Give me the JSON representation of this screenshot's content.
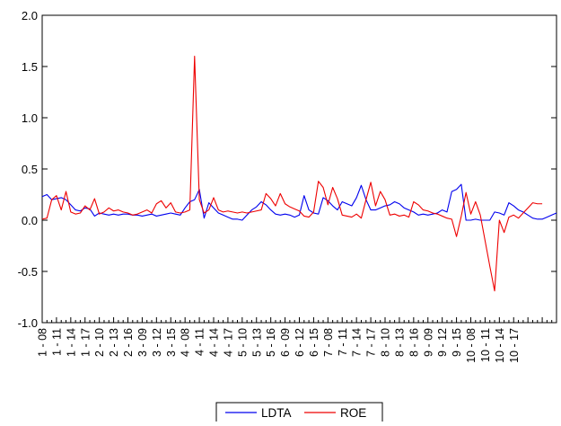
{
  "chart_data": {
    "type": "line",
    "ylim": [
      -1.0,
      2.0
    ],
    "y_ticks": [
      -1.0,
      -0.5,
      0.0,
      0.5,
      1.0,
      1.5,
      2.0
    ],
    "y_tick_labels": [
      "-1.0",
      "-0.5",
      "0.0",
      "0.5",
      "1.0",
      "1.5",
      "2.0"
    ],
    "grid": false,
    "legend_position": "bottom-center",
    "x_tick_labels": [
      "1 - 08",
      "1 - 11",
      "1 - 14",
      "1 - 17",
      "2 - 10",
      "2 - 13",
      "2 - 16",
      "3 - 09",
      "3 - 12",
      "3 - 15",
      "4 - 08",
      "4 - 11",
      "4 - 14",
      "4 - 17",
      "5 - 10",
      "5 - 13",
      "5 - 16",
      "6 - 09",
      "6 - 12",
      "6 - 15",
      "7 - 08",
      "7 - 11",
      "7 - 14",
      "7 - 17",
      "8 - 10",
      "8 - 13",
      "8 - 16",
      "9 - 09",
      "9 - 12",
      "9 - 15",
      "10 - 08",
      "10 - 11",
      "10 - 14",
      "10 - 17"
    ],
    "series": [
      {
        "name": "LDTA",
        "color": "#0000ee",
        "values": [
          0.23,
          0.25,
          0.2,
          0.21,
          0.22,
          0.2,
          0.15,
          0.1,
          0.09,
          0.12,
          0.11,
          0.04,
          0.07,
          0.06,
          0.05,
          0.06,
          0.05,
          0.06,
          0.06,
          0.05,
          0.05,
          0.04,
          0.05,
          0.06,
          0.04,
          0.05,
          0.06,
          0.07,
          0.06,
          0.05,
          0.12,
          0.18,
          0.2,
          0.3,
          0.02,
          0.17,
          0.12,
          0.07,
          0.05,
          0.03,
          0.01,
          0.01,
          0.0,
          0.05,
          0.1,
          0.13,
          0.18,
          0.15,
          0.1,
          0.06,
          0.05,
          0.06,
          0.05,
          0.03,
          0.05,
          0.24,
          0.1,
          0.07,
          0.06,
          0.22,
          0.19,
          0.14,
          0.1,
          0.18,
          0.16,
          0.14,
          0.22,
          0.34,
          0.2,
          0.1,
          0.1,
          0.12,
          0.14,
          0.15,
          0.18,
          0.16,
          0.12,
          0.1,
          0.08,
          0.05,
          0.06,
          0.05,
          0.06,
          0.07,
          0.1,
          0.08,
          0.28,
          0.3,
          0.35,
          0.0,
          0.0,
          0.01,
          0.0,
          0.0,
          0.0,
          0.08,
          0.07,
          0.05,
          0.17,
          0.14,
          0.1,
          0.08,
          0.05,
          0.02,
          0.01,
          0.01,
          0.03,
          0.05,
          0.07
        ]
      },
      {
        "name": "ROE",
        "color": "#ee0000",
        "values": [
          0.01,
          0.02,
          0.2,
          0.24,
          0.1,
          0.28,
          0.08,
          0.06,
          0.07,
          0.14,
          0.1,
          0.21,
          0.06,
          0.08,
          0.12,
          0.09,
          0.1,
          0.08,
          0.07,
          0.05,
          0.06,
          0.08,
          0.1,
          0.07,
          0.16,
          0.19,
          0.12,
          0.17,
          0.08,
          0.07,
          0.08,
          0.1,
          1.6,
          0.2,
          0.07,
          0.1,
          0.22,
          0.1,
          0.08,
          0.09,
          0.08,
          0.07,
          0.08,
          0.07,
          0.08,
          0.09,
          0.1,
          0.26,
          0.21,
          0.14,
          0.26,
          0.16,
          0.13,
          0.11,
          0.09,
          0.04,
          0.03,
          0.08,
          0.38,
          0.32,
          0.15,
          0.32,
          0.21,
          0.05,
          0.04,
          0.03,
          0.06,
          0.02,
          0.2,
          0.37,
          0.14,
          0.28,
          0.2,
          0.05,
          0.06,
          0.04,
          0.05,
          0.03,
          0.18,
          0.15,
          0.1,
          0.09,
          0.07,
          0.06,
          0.04,
          0.02,
          0.01,
          -0.16,
          0.04,
          0.27,
          0.06,
          0.18,
          0.05,
          -0.2,
          -0.45,
          -0.69,
          0.0,
          -0.12,
          0.03,
          0.05,
          0.02,
          0.07,
          0.12,
          0.17,
          0.16,
          0.16
        ]
      }
    ]
  }
}
